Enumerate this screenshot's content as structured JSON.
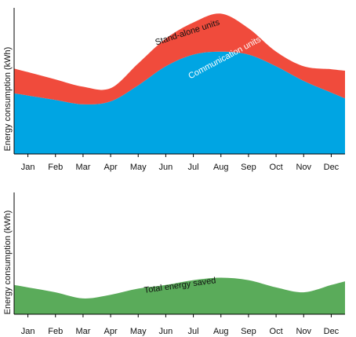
{
  "chart_data": [
    {
      "type": "area",
      "stacked": true,
      "ylabel": "Energy consumption (kWh)",
      "xlabel": "",
      "categories": [
        "Jan",
        "Feb",
        "Mar",
        "Apr",
        "May",
        "Jun",
        "Jul",
        "Aug",
        "Sep",
        "Oct",
        "Nov",
        "Dec"
      ],
      "ylim": [
        0,
        100
      ],
      "y_ticks_shown": false,
      "grid": false,
      "legend": "none",
      "series": [
        {
          "name": "Communication units",
          "color": "#00a5e3",
          "label_color": "#ffffff",
          "values": [
            40,
            37,
            34,
            36,
            47,
            60,
            68,
            70,
            68,
            60,
            50,
            42
          ]
        },
        {
          "name": "Stand-alone units",
          "color": "#f04b3c",
          "label_color": "#111111",
          "values": [
            16,
            14,
            12,
            9,
            15,
            19,
            22,
            26,
            18,
            10,
            10,
            16
          ]
        }
      ]
    },
    {
      "type": "area",
      "ylabel": "Energy consumption (kWh)",
      "xlabel": "",
      "categories": [
        "Jan",
        "Feb",
        "Mar",
        "Apr",
        "May",
        "Jun",
        "Jul",
        "Aug",
        "Sep",
        "Oct",
        "Nov",
        "Dec"
      ],
      "ylim": [
        0,
        100
      ],
      "y_ticks_shown": false,
      "grid": false,
      "legend": "none",
      "series": [
        {
          "name": "Total energy saved",
          "color": "#5aab5a",
          "label_color": "#111111",
          "values": [
            22,
            18,
            13,
            16,
            21,
            24,
            28,
            30,
            28,
            22,
            18,
            24
          ]
        }
      ]
    }
  ]
}
